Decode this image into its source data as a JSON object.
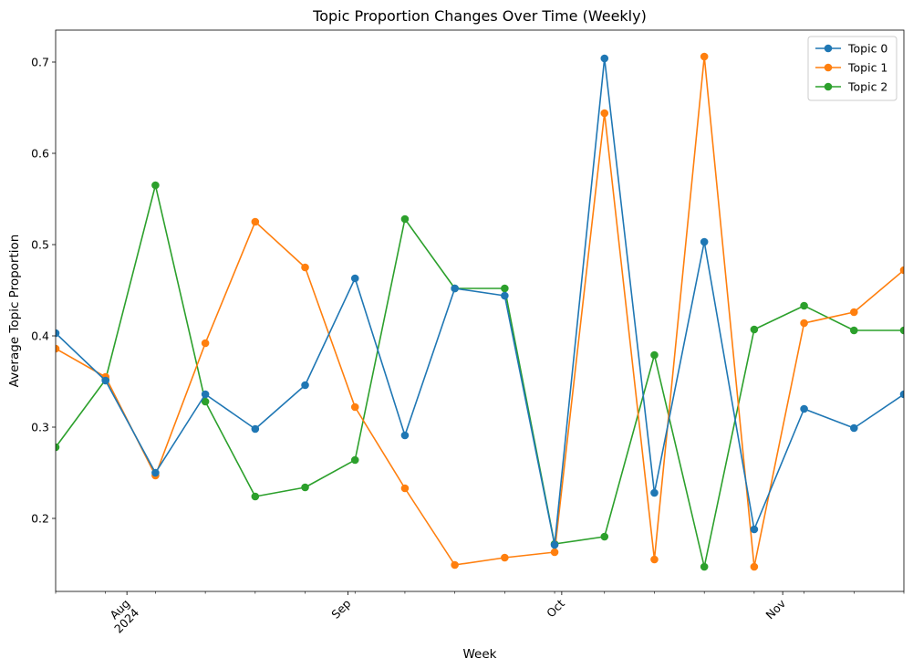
{
  "chart_data": {
    "type": "line",
    "title": "Topic Proportion Changes Over Time (Weekly)",
    "xlabel": "Week",
    "ylabel": "Average Topic Proportion",
    "x_type": "date",
    "xlim": [
      "2024-07-22",
      "2024-11-18"
    ],
    "ylim": [
      0.12,
      0.735
    ],
    "yticks": [
      0.2,
      0.3,
      0.4,
      0.5,
      0.6,
      0.7
    ],
    "ytick_labels": [
      "0.2",
      "0.3",
      "0.4",
      "0.5",
      "0.6",
      "0.7"
    ],
    "xticks": [
      {
        "date": "2024-08-01",
        "label": "Aug",
        "sublabel": "2024"
      },
      {
        "date": "2024-09-01",
        "label": "Sep",
        "sublabel": ""
      },
      {
        "date": "2024-10-01",
        "label": "Oct",
        "sublabel": ""
      },
      {
        "date": "2024-11-01",
        "label": "Nov",
        "sublabel": ""
      }
    ],
    "x": [
      "2024-07-22",
      "2024-07-29",
      "2024-08-05",
      "2024-08-12",
      "2024-08-19",
      "2024-08-26",
      "2024-09-02",
      "2024-09-09",
      "2024-09-16",
      "2024-09-23",
      "2024-09-30",
      "2024-10-07",
      "2024-10-14",
      "2024-10-21",
      "2024-10-28",
      "2024-11-04",
      "2024-11-11",
      "2024-11-18"
    ],
    "series": [
      {
        "name": "Topic 0",
        "color": "#1f77b4",
        "values": [
          0.403,
          0.351,
          0.25,
          0.336,
          0.298,
          0.346,
          0.463,
          0.291,
          0.452,
          0.444,
          0.171,
          0.704,
          0.228,
          0.503,
          0.188,
          0.32,
          0.299,
          0.336
        ]
      },
      {
        "name": "Topic 1",
        "color": "#ff7f0e",
        "values": [
          0.386,
          0.355,
          0.247,
          0.392,
          0.525,
          0.475,
          0.322,
          0.233,
          0.149,
          0.157,
          0.163,
          0.644,
          0.155,
          0.706,
          0.147,
          0.414,
          0.426,
          0.472
        ]
      },
      {
        "name": "Topic 2",
        "color": "#2ca02c",
        "values": [
          0.278,
          0.352,
          0.565,
          0.328,
          0.224,
          0.234,
          0.264,
          0.528,
          0.452,
          0.452,
          0.172,
          0.18,
          0.379,
          0.147,
          0.407,
          0.433,
          0.406,
          0.406
        ]
      }
    ],
    "draw_order": [
      2,
      1,
      0
    ],
    "legend_position": "top-right",
    "grid": false
  }
}
